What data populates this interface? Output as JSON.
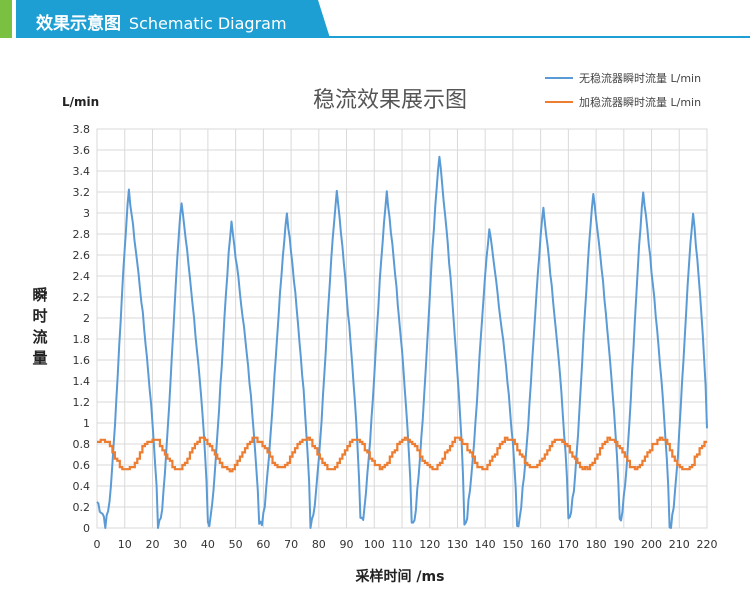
{
  "header": {
    "title_cn": "效果示意图",
    "title_en": "Schematic Diagram",
    "accent_color": "#1e9fd4",
    "tab_color": "#7ac142"
  },
  "chart_data": {
    "type": "line",
    "title": "稳流效果展示图",
    "ylabel": "瞬时流量",
    "y_unit": "L/min",
    "xlabel": "采样时间 /ms",
    "xlim": [
      0,
      220
    ],
    "ylim": [
      0,
      3.8
    ],
    "x_ticks": [
      0,
      10,
      20,
      30,
      40,
      50,
      60,
      70,
      80,
      90,
      100,
      110,
      120,
      130,
      140,
      150,
      160,
      170,
      180,
      190,
      200,
      210,
      220
    ],
    "y_ticks": [
      "0",
      "0.2",
      "0.4",
      "0.6",
      "0.8",
      "1",
      "1.2",
      "1.4",
      "1.6",
      "1.8",
      "2",
      "2.2",
      "2.4",
      "2.6",
      "2.8",
      "3",
      "3.2",
      "3.4",
      "3.6",
      "3.8"
    ],
    "grid": true,
    "legend_position": "top-right",
    "series": [
      {
        "name": "无稳流器瞬时流量 L/min",
        "color": "#5b9bd5",
        "peaks": [
          {
            "x": 11.5,
            "y": 3.2
          },
          {
            "x": 30.5,
            "y": 3.1
          },
          {
            "x": 48.5,
            "y": 2.9
          },
          {
            "x": 68.5,
            "y": 3.0
          },
          {
            "x": 86.5,
            "y": 3.2
          },
          {
            "x": 104.5,
            "y": 3.2
          },
          {
            "x": 123.5,
            "y": 3.55
          },
          {
            "x": 141.5,
            "y": 2.85
          },
          {
            "x": 161.0,
            "y": 3.05
          },
          {
            "x": 179.0,
            "y": 3.2
          },
          {
            "x": 197.0,
            "y": 3.2
          },
          {
            "x": 215.0,
            "y": 3.0
          }
        ],
        "troughs": [
          {
            "x": 3.0,
            "y": 0.05
          },
          {
            "x": 22.0,
            "y": 0.0
          },
          {
            "x": 40.0,
            "y": 0.05
          },
          {
            "x": 58.5,
            "y": 0.0
          },
          {
            "x": 77.0,
            "y": 0.05
          },
          {
            "x": 95.0,
            "y": 0.05
          },
          {
            "x": 113.5,
            "y": 0.05
          },
          {
            "x": 132.5,
            "y": 0.05
          },
          {
            "x": 151.5,
            "y": 0.05
          },
          {
            "x": 170.0,
            "y": 0.05
          },
          {
            "x": 188.5,
            "y": 0.05
          },
          {
            "x": 206.5,
            "y": 0.0
          }
        ],
        "start": {
          "x": 0,
          "y": 0.25
        },
        "end": {
          "x": 220,
          "y": 0.95
        }
      },
      {
        "name": "加稳流器瞬时流量 L/min",
        "color": "#ed7d31",
        "peaks": [
          {
            "x": 2,
            "y": 0.85
          },
          {
            "x": 20,
            "y": 0.85
          },
          {
            "x": 38,
            "y": 0.85
          },
          {
            "x": 57,
            "y": 0.85
          },
          {
            "x": 75,
            "y": 0.85
          },
          {
            "x": 93,
            "y": 0.85
          },
          {
            "x": 111,
            "y": 0.85
          },
          {
            "x": 130,
            "y": 0.85
          },
          {
            "x": 148,
            "y": 0.85
          },
          {
            "x": 166,
            "y": 0.85
          },
          {
            "x": 185,
            "y": 0.85
          },
          {
            "x": 203,
            "y": 0.85
          },
          {
            "x": 220,
            "y": 0.82
          }
        ],
        "troughs": [
          {
            "x": 10,
            "y": 0.55
          },
          {
            "x": 29,
            "y": 0.57
          },
          {
            "x": 47,
            "y": 0.55
          },
          {
            "x": 66,
            "y": 0.57
          },
          {
            "x": 84,
            "y": 0.57
          },
          {
            "x": 102,
            "y": 0.57
          },
          {
            "x": 121,
            "y": 0.56
          },
          {
            "x": 139,
            "y": 0.57
          },
          {
            "x": 157,
            "y": 0.57
          },
          {
            "x": 176,
            "y": 0.57
          },
          {
            "x": 194,
            "y": 0.57
          },
          {
            "x": 212,
            "y": 0.55
          }
        ]
      }
    ]
  }
}
